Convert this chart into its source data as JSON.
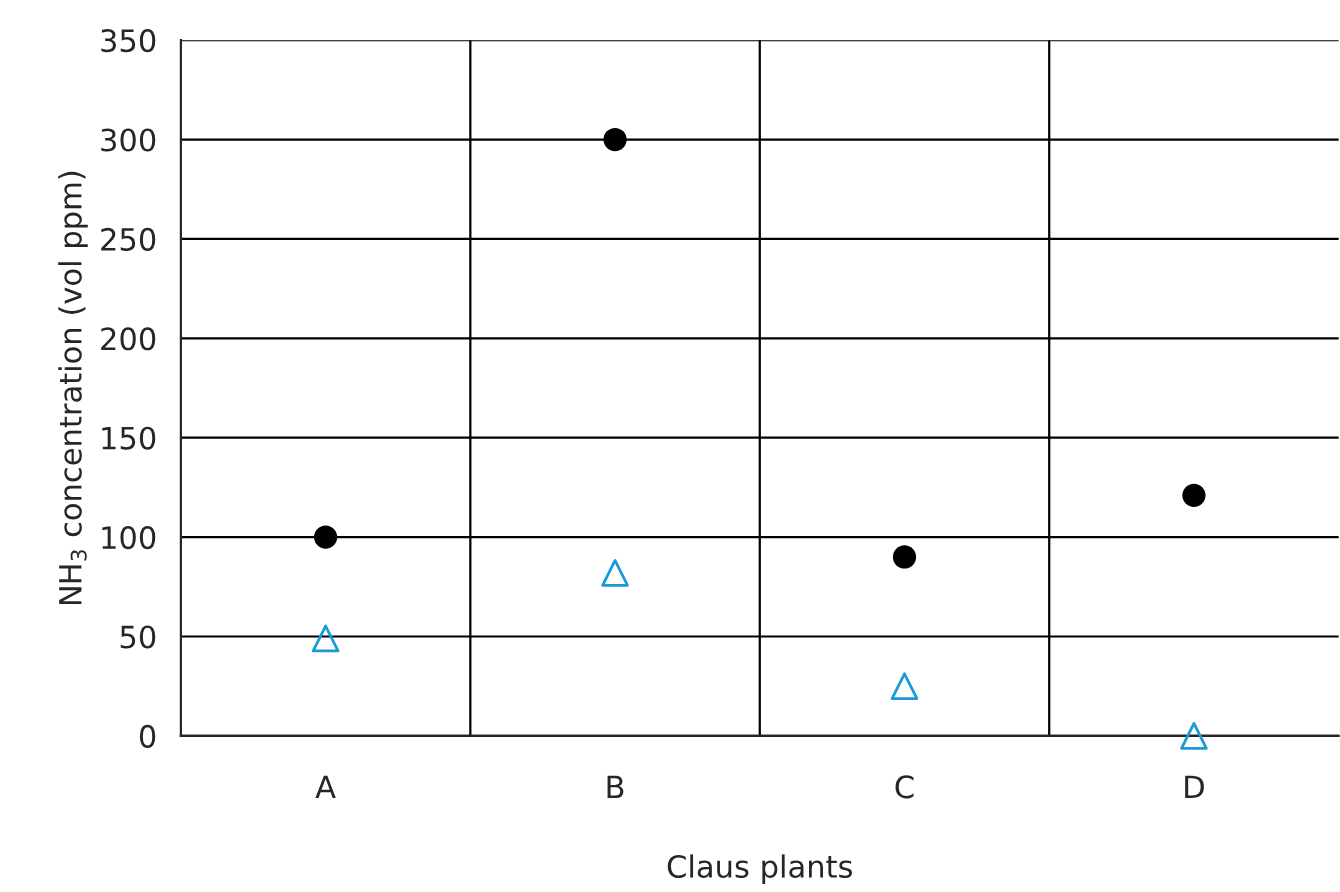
{
  "chart_data": {
    "type": "scatter",
    "xlabel": "Claus plants",
    "ylabel": "NH$_{3}$ concentration (vol ppm)",
    "categories": [
      "A",
      "B",
      "C",
      "D"
    ],
    "series": [
      {
        "color": "#000000",
        "marker": "circle",
        "values": [
          100,
          300,
          90,
          121
        ]
      },
      {
        "color": "#1a9ad6",
        "marker": "triangle",
        "values": [
          49,
          82,
          25,
          0
        ]
      }
    ],
    "ylim": [
      0,
      350
    ],
    "yticks": [
      0,
      50,
      100,
      150,
      200,
      250,
      300,
      350
    ],
    "grid": true
  }
}
